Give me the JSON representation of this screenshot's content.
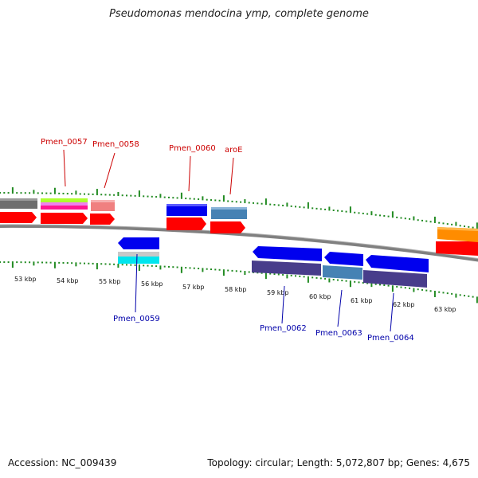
{
  "title": "Pseudomonas mendocina ymp, complete genome",
  "footer": {
    "accession": "Accession: NC_009439",
    "summary": "Topology: circular; Length: 5,072,807 bp; Genes: 4,675"
  },
  "colors": {
    "backbone": "#808080",
    "tick": "#228B22",
    "top_label": "#cc0000",
    "bottom_label": "#0000aa",
    "feature_gray": "#6e6e6e",
    "feature_red": "#ff0000",
    "feature_blue": "#0000ee",
    "feature_steel": "#4682b4",
    "feature_slate": "#483d8b",
    "feature_orange": "#ff8c00",
    "feature_pink": "#f08080",
    "feature_cyan": "#00e5ee",
    "feature_lightgray": "#c8c8c8",
    "feature_lime": "#adff2f",
    "feature_magenta": "#ff1493"
  },
  "scale_labels": [
    "53 kbp",
    "54 kbp",
    "55 kbp",
    "56 kbp",
    "57 kbp",
    "58 kbp",
    "59 kbp",
    "60 kbp",
    "61 kbp",
    "62 kbp",
    "63 kbp"
  ],
  "top_genes": [
    "Pmen_0057",
    "Pmen_0058",
    "Pmen_0060",
    "aroE"
  ],
  "bottom_genes": [
    "Pmen_0059",
    "Pmen_0062",
    "Pmen_0063",
    "Pmen_0064"
  ]
}
